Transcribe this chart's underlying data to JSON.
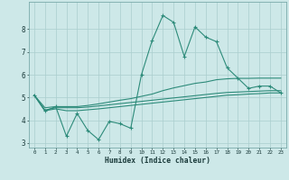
{
  "xlabel": "Humidex (Indice chaleur)",
  "x": [
    0,
    1,
    2,
    3,
    4,
    5,
    6,
    7,
    8,
    9,
    10,
    11,
    12,
    13,
    14,
    15,
    16,
    17,
    18,
    19,
    20,
    21,
    22,
    23
  ],
  "line1": [
    5.1,
    4.4,
    4.6,
    3.3,
    4.3,
    3.55,
    3.15,
    3.95,
    3.85,
    3.65,
    6.0,
    7.5,
    8.6,
    8.3,
    6.8,
    8.1,
    7.65,
    7.45,
    6.3,
    5.85,
    5.4,
    5.5,
    5.5,
    5.2
  ],
  "line2": [
    5.1,
    4.55,
    4.6,
    4.6,
    4.6,
    4.65,
    4.72,
    4.8,
    4.88,
    4.95,
    5.05,
    5.15,
    5.3,
    5.42,
    5.52,
    5.62,
    5.68,
    5.78,
    5.82,
    5.84,
    5.84,
    5.85,
    5.85,
    5.85
  ],
  "line3": [
    5.1,
    4.45,
    4.55,
    4.55,
    4.55,
    4.58,
    4.63,
    4.68,
    4.73,
    4.78,
    4.83,
    4.88,
    4.93,
    4.98,
    5.03,
    5.08,
    5.13,
    5.18,
    5.22,
    5.24,
    5.26,
    5.28,
    5.3,
    5.3
  ],
  "line4": [
    5.1,
    4.42,
    4.5,
    4.42,
    4.42,
    4.46,
    4.5,
    4.55,
    4.6,
    4.65,
    4.7,
    4.75,
    4.8,
    4.85,
    4.9,
    4.95,
    5.0,
    5.05,
    5.1,
    5.12,
    5.15,
    5.17,
    5.2,
    5.2
  ],
  "color": "#2d8b7a",
  "bg_color": "#cde8e8",
  "grid_color": "#aacece",
  "ylim": [
    2.8,
    9.2
  ],
  "xlim": [
    -0.5,
    23.5
  ],
  "xtick_labels": [
    "0",
    "1",
    "2",
    "3",
    "4",
    "5",
    "6",
    "7",
    "8",
    "9",
    "10",
    "11",
    "12",
    "13",
    "14",
    "15",
    "16",
    "17",
    "18",
    "19",
    "20",
    "21",
    "22",
    "23"
  ]
}
